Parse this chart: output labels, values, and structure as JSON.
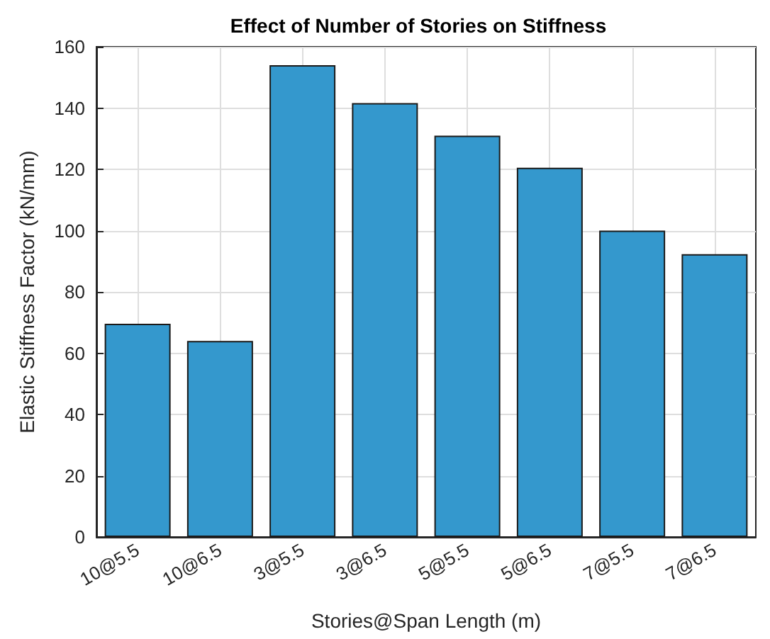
{
  "chart_data": {
    "type": "bar",
    "title": "Effect of Number of Stories on Stiffness",
    "xlabel": "Stories@Span Length (m)",
    "ylabel": "Elastic Stiffness Factor (kN/mm)",
    "categories": [
      "10@5.5",
      "10@6.5",
      "3@5.5",
      "3@6.5",
      "5@5.5",
      "5@6.5",
      "7@5.5",
      "7@6.5"
    ],
    "values": [
      69.6,
      64,
      154,
      141.6,
      131,
      120.5,
      100,
      92.3
    ],
    "color": "#3498cd",
    "ylim": [
      0,
      160
    ],
    "yticks": [
      0,
      20,
      40,
      60,
      80,
      100,
      120,
      140,
      160
    ],
    "grid": true
  }
}
